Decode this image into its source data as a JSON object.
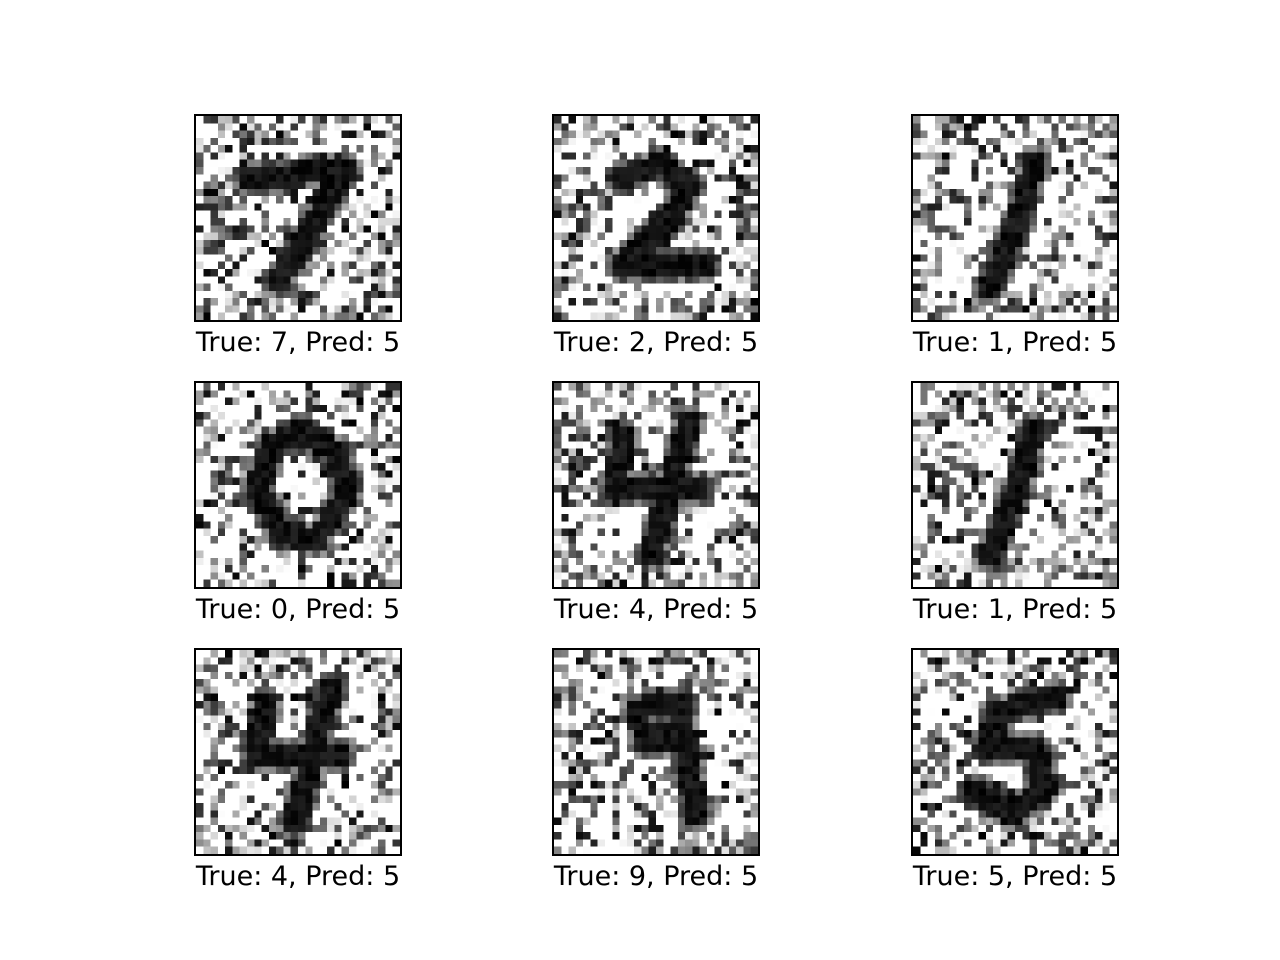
{
  "panels": [
    {
      "digit": 7,
      "caption": "True: 7, Pred: 5"
    },
    {
      "digit": 2,
      "caption": "True: 2, Pred: 5"
    },
    {
      "digit": 1,
      "caption": "True: 1, Pred: 5"
    },
    {
      "digit": 0,
      "caption": "True: 0, Pred: 5"
    },
    {
      "digit": 4,
      "caption": "True: 4, Pred: 5"
    },
    {
      "digit": 1,
      "caption": "True: 1, Pred: 5"
    },
    {
      "digit": 4,
      "caption": "True: 4, Pred: 5"
    },
    {
      "digit": 9,
      "caption": "True: 9, Pred: 5"
    },
    {
      "digit": 5,
      "caption": "True: 5, Pred: 5"
    }
  ]
}
